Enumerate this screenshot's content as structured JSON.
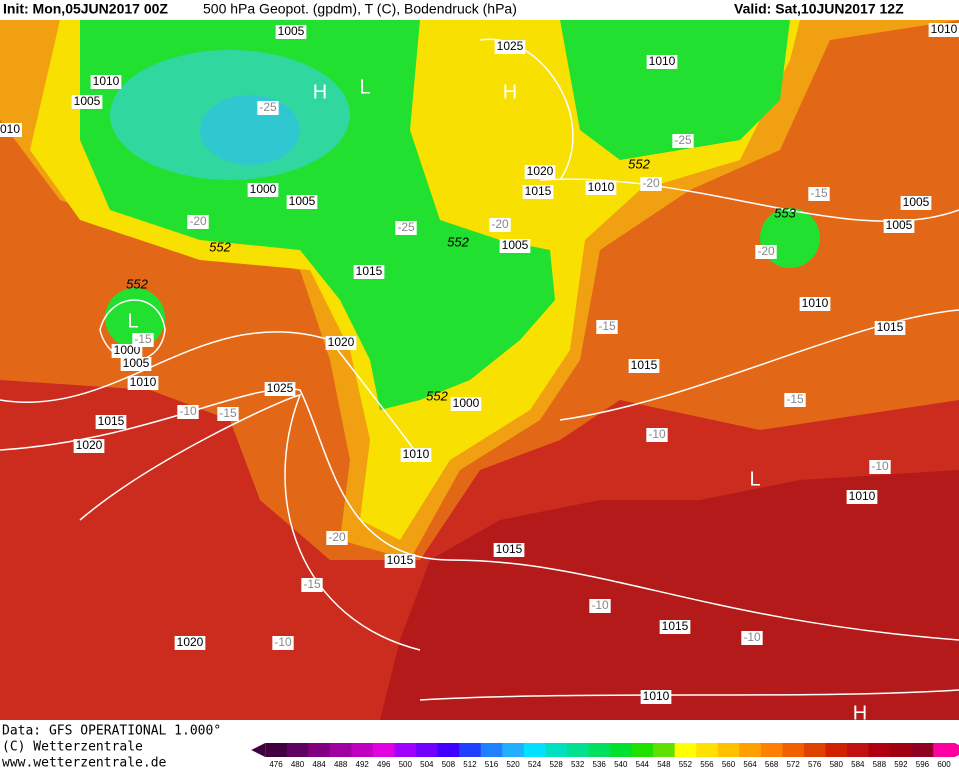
{
  "header": {
    "init": "Init: Mon,05JUN2017 00Z",
    "title": "500 hPa Geopot. (gpdm), T (C), Bodendruck (hPa)",
    "valid": "Valid: Sat,10JUN2017 12Z"
  },
  "footer": {
    "data": "Data: GFS OPERATIONAL 1.000°",
    "copyright": "(C) Wetterzentrale",
    "url": "www.wetterzentrale.de"
  },
  "isobar_labels": [
    "1005",
    "1025",
    "1010",
    "1005",
    "010",
    "1010",
    "1020",
    "1015",
    "1010",
    "1000",
    "1005",
    "1005",
    "1015",
    "1005",
    "1005",
    "1010",
    "1010",
    "1015",
    "1020",
    "1000",
    "1005",
    "1010",
    "1025",
    "1000",
    "1015",
    "1015",
    "1020",
    "1010",
    "1010",
    "1015",
    "1015",
    "1015",
    "1020",
    "1010"
  ],
  "temperature_labels": [
    "-25",
    "-25",
    "-20",
    "-20",
    "-25",
    "-20",
    "-15",
    "-20",
    "-15",
    "-15",
    "-10",
    "-15",
    "-15",
    "-10",
    "-10",
    "-20",
    "-15",
    "-10",
    "-10",
    "-10"
  ],
  "geopotential_labels": [
    "552",
    "552",
    "552",
    "552",
    "553",
    "552"
  ],
  "pressure_centers": [
    "H",
    "L",
    "H",
    "L",
    "L",
    "H"
  ],
  "colorbar": {
    "labels": [
      476,
      480,
      484,
      488,
      492,
      496,
      500,
      504,
      508,
      512,
      516,
      520,
      524,
      528,
      532,
      536,
      540,
      544,
      548,
      552,
      556,
      560,
      564,
      568,
      572,
      576,
      580,
      584,
      588,
      592,
      596,
      600
    ],
    "colors": [
      "#400040",
      "#600060",
      "#800080",
      "#a000a0",
      "#c000c0",
      "#e000e0",
      "#a000ff",
      "#7000ff",
      "#4000ff",
      "#2040ff",
      "#2080ff",
      "#20b0ff",
      "#00e0ff",
      "#00e0c0",
      "#00e090",
      "#00e060",
      "#00e030",
      "#20e000",
      "#60e000",
      "#ffff00",
      "#ffe000",
      "#ffc000",
      "#ffa000",
      "#ff8000",
      "#f06000",
      "#e04000",
      "#d02000",
      "#c01010",
      "#b00010",
      "#a00010",
      "#900020",
      "#ff00a0"
    ]
  }
}
